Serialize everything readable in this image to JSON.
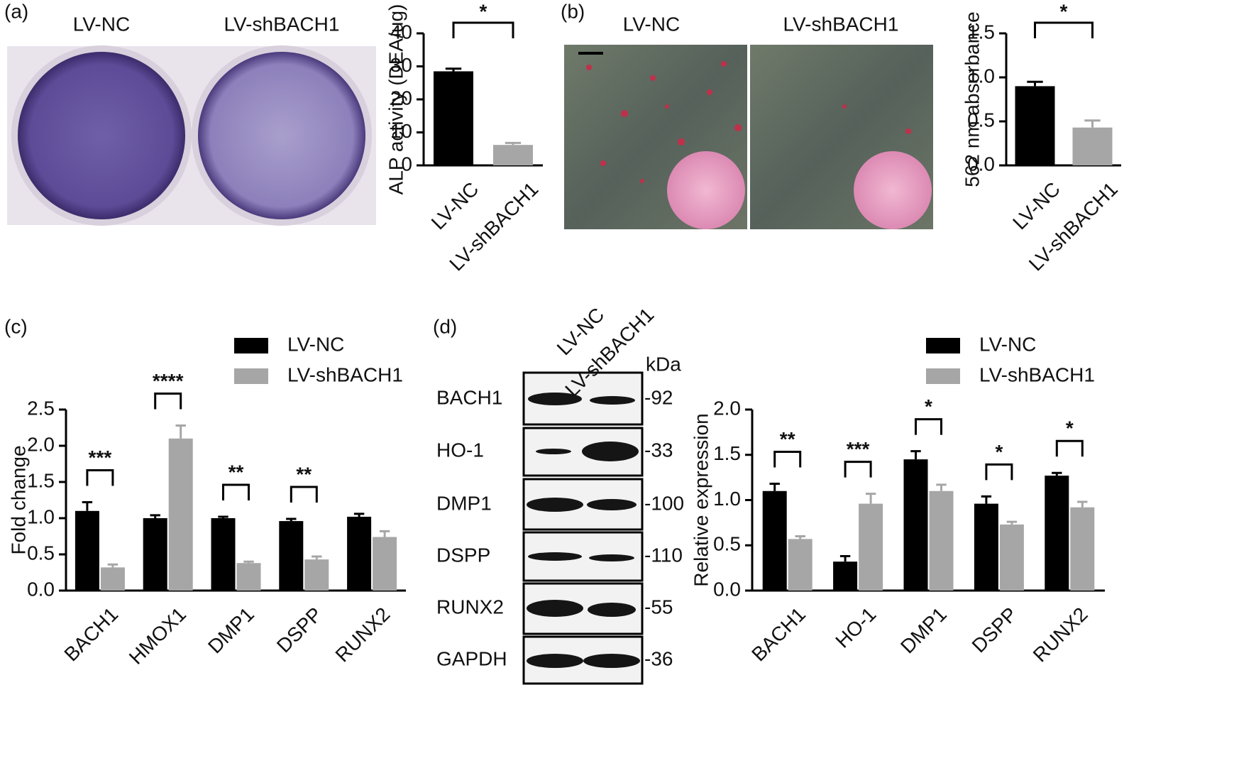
{
  "figure": {
    "panel_labels": [
      "(a)",
      "(b)",
      "(c)",
      "(d)"
    ],
    "image_a_labels": [
      "LV-NC",
      "LV-shBACH1"
    ],
    "image_b_labels": [
      "LV-NC",
      "LV-shBACH1"
    ],
    "blot": {
      "columns": [
        "LV-NC",
        "LV-shBACH1"
      ],
      "unit": "kDa",
      "rows": [
        {
          "label": "BACH1",
          "size": "-92"
        },
        {
          "label": "HO-1",
          "size": "-33"
        },
        {
          "label": "DMP1",
          "size": "-100"
        },
        {
          "label": "DSPP",
          "size": "-110"
        },
        {
          "label": "RUNX2",
          "size": "-55"
        },
        {
          "label": "GAPDH",
          "size": "-36"
        }
      ]
    }
  },
  "chart_data": [
    {
      "type": "bar",
      "ylabel": "ALP activity (DEA/ug)",
      "categories": [
        "LV-NC",
        "LV-shBACH1"
      ],
      "values": [
        28.5,
        6.2
      ],
      "errors": [
        0.8,
        0.6
      ],
      "colors": [
        "#000000",
        "#a6a6a6"
      ],
      "ylim": [
        0,
        40
      ],
      "yticks": [
        0,
        10,
        20,
        30,
        40
      ],
      "significance": "*"
    },
    {
      "type": "bar",
      "ylabel": "562 nm absorbance",
      "categories": [
        "LV-NC",
        "LV-shBACH1"
      ],
      "values": [
        0.9,
        0.43
      ],
      "errors": [
        0.05,
        0.08
      ],
      "colors": [
        "#000000",
        "#a6a6a6"
      ],
      "ylim": [
        0,
        1.5
      ],
      "yticks": [
        {
          "value": 0,
          "label": "0.0"
        },
        0.5,
        {
          "value": 1,
          "label": "1.0"
        },
        1.5
      ],
      "significance": "*"
    },
    {
      "type": "grouped-bar",
      "ylabel": "Fold change",
      "categories": [
        "BACH1",
        "HMOX1",
        "DMP1",
        "DSPP",
        "RUNX2"
      ],
      "series": [
        {
          "name": "LV-NC",
          "color": "#000000",
          "values": [
            1.1,
            1.0,
            1.0,
            0.96,
            1.02
          ],
          "errors": [
            0.12,
            0.04,
            0.02,
            0.03,
            0.04
          ]
        },
        {
          "name": "LV-shBACH1",
          "color": "#a6a6a6",
          "values": [
            0.32,
            2.1,
            0.38,
            0.43,
            0.74
          ],
          "errors": [
            0.04,
            0.18,
            0.02,
            0.04,
            0.08
          ]
        }
      ],
      "ylim": [
        0,
        2.5
      ],
      "yticks": [
        {
          "value": 0,
          "label": "0.0"
        },
        0.5,
        {
          "value": 1,
          "label": "1.0"
        },
        1.5,
        {
          "value": 2,
          "label": "2.0"
        },
        2.5
      ],
      "significance": [
        "***",
        "****",
        "**",
        "**",
        null
      ],
      "legend": "top-right"
    },
    {
      "type": "grouped-bar",
      "ylabel": "Relative expression",
      "categories": [
        "BACH1",
        "HO-1",
        "DMP1",
        "DSPP",
        "RUNX2"
      ],
      "series": [
        {
          "name": "LV-NC",
          "color": "#000000",
          "values": [
            1.1,
            0.32,
            1.45,
            0.96,
            1.27
          ],
          "errors": [
            0.08,
            0.06,
            0.09,
            0.08,
            0.03
          ]
        },
        {
          "name": "LV-shBACH1",
          "color": "#a6a6a6",
          "values": [
            0.57,
            0.96,
            1.1,
            0.73,
            0.92
          ],
          "errors": [
            0.03,
            0.11,
            0.07,
            0.03,
            0.06
          ]
        }
      ],
      "ylim": [
        0,
        2
      ],
      "yticks": [
        {
          "value": 0,
          "label": "0.0"
        },
        0.5,
        {
          "value": 1,
          "label": "1.0"
        },
        1.5,
        {
          "value": 2,
          "label": "2.0"
        }
      ],
      "significance": [
        "**",
        "***",
        "*",
        "*",
        "*"
      ],
      "legend": "top-right"
    }
  ]
}
